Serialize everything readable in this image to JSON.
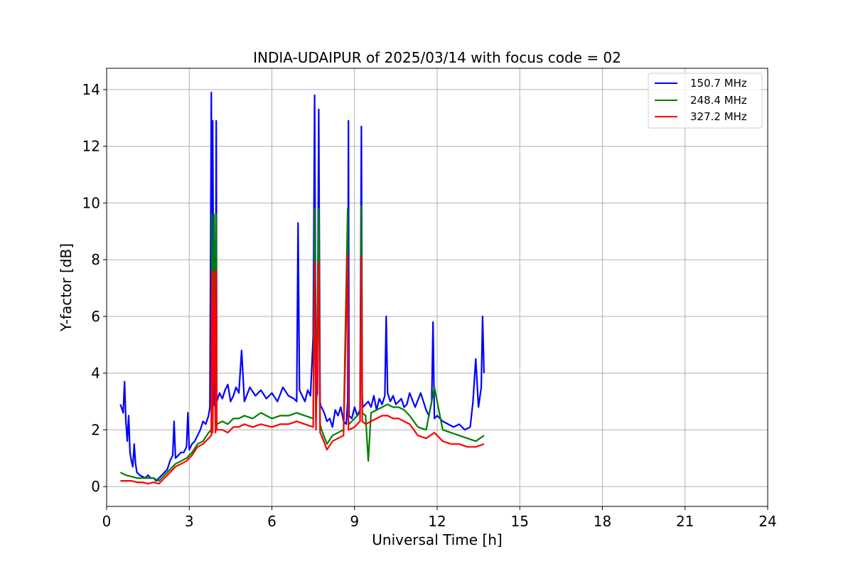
{
  "chart_data": {
    "type": "line",
    "title": "INDIA-UDAIPUR of 2025/03/14 with focus code = 02",
    "xlabel": "Universal Time [h]",
    "ylabel": "Y-factor [dB]",
    "xlim": [
      0,
      24
    ],
    "ylim": [
      -0.7,
      14.75
    ],
    "xticks": [
      0,
      3,
      6,
      9,
      12,
      15,
      18,
      21,
      24
    ],
    "yticks": [
      0,
      2,
      4,
      6,
      8,
      10,
      12,
      14
    ],
    "grid": true,
    "legend_position": "top-right",
    "series": [
      {
        "name": "150.7 MHz",
        "color": "#0000ff",
        "x": [
          0.5,
          0.6,
          0.65,
          0.7,
          0.75,
          0.8,
          0.85,
          0.9,
          0.95,
          1.0,
          1.05,
          1.1,
          1.15,
          1.2,
          1.3,
          1.4,
          1.5,
          1.6,
          1.7,
          1.8,
          1.9,
          2.0,
          2.2,
          2.3,
          2.4,
          2.45,
          2.5,
          2.6,
          2.7,
          2.8,
          2.9,
          2.95,
          3.0,
          3.1,
          3.2,
          3.3,
          3.4,
          3.5,
          3.6,
          3.7,
          3.75,
          3.8,
          3.82,
          3.85,
          3.9,
          3.95,
          3.98,
          4.0,
          4.1,
          4.2,
          4.3,
          4.4,
          4.5,
          4.6,
          4.7,
          4.8,
          4.9,
          5.0,
          5.2,
          5.4,
          5.6,
          5.8,
          6.0,
          6.2,
          6.4,
          6.6,
          6.8,
          6.9,
          6.95,
          7.0,
          7.1,
          7.2,
          7.3,
          7.4,
          7.5,
          7.55,
          7.6,
          7.65,
          7.7,
          7.75,
          7.78,
          7.8,
          7.9,
          8.0,
          8.1,
          8.2,
          8.3,
          8.4,
          8.5,
          8.6,
          8.7,
          8.75,
          8.78,
          8.8,
          8.9,
          9.0,
          9.1,
          9.2,
          9.25,
          9.28,
          9.3,
          9.4,
          9.5,
          9.6,
          9.7,
          9.8,
          9.9,
          10.0,
          10.1,
          10.15,
          10.2,
          10.3,
          10.4,
          10.5,
          10.6,
          10.7,
          10.8,
          10.9,
          11.0,
          11.2,
          11.4,
          11.6,
          11.7,
          11.8,
          11.85,
          11.9,
          12.0,
          12.2,
          12.4,
          12.6,
          12.8,
          13.0,
          13.2,
          13.3,
          13.4,
          13.5,
          13.6,
          13.65,
          13.7
        ],
        "y": [
          2.9,
          2.6,
          3.7,
          2.3,
          1.6,
          2.5,
          1.2,
          0.9,
          0.7,
          1.5,
          0.8,
          0.5,
          0.45,
          0.4,
          0.35,
          0.3,
          0.4,
          0.3,
          0.3,
          0.2,
          0.3,
          0.4,
          0.6,
          0.9,
          1.1,
          2.3,
          1.0,
          1.1,
          1.2,
          1.2,
          1.4,
          2.6,
          1.3,
          1.5,
          1.6,
          1.8,
          2.0,
          2.3,
          2.2,
          2.5,
          2.8,
          13.9,
          3.0,
          12.9,
          2.9,
          2.8,
          12.9,
          3.0,
          3.3,
          3.1,
          3.4,
          3.6,
          3.0,
          3.2,
          3.5,
          3.3,
          4.8,
          3.0,
          3.5,
          3.2,
          3.4,
          3.1,
          3.3,
          3.0,
          3.5,
          3.2,
          3.1,
          3.0,
          9.3,
          3.4,
          3.2,
          3.0,
          3.4,
          3.2,
          5.3,
          13.8,
          3.0,
          3.3,
          13.3,
          3.0,
          2.8,
          2.8,
          2.6,
          2.3,
          2.4,
          2.1,
          2.7,
          2.5,
          2.8,
          2.3,
          2.2,
          3.0,
          12.9,
          2.5,
          2.4,
          2.8,
          2.5,
          2.7,
          12.7,
          3.2,
          2.8,
          2.9,
          3.0,
          2.8,
          3.2,
          2.7,
          3.1,
          2.9,
          3.2,
          6.0,
          3.3,
          3.0,
          3.2,
          2.9,
          3.0,
          3.1,
          2.8,
          2.9,
          3.3,
          2.8,
          3.3,
          2.7,
          2.5,
          3.0,
          5.8,
          2.4,
          2.5,
          2.3,
          2.2,
          2.1,
          2.2,
          2.0,
          2.1,
          3.0,
          4.5,
          2.8,
          3.5,
          6.0,
          4.0
        ]
      },
      {
        "name": "248.4 MHz",
        "color": "#008000",
        "x": [
          0.5,
          0.7,
          0.9,
          1.1,
          1.3,
          1.5,
          1.7,
          1.9,
          2.1,
          2.3,
          2.5,
          2.7,
          2.9,
          3.1,
          3.3,
          3.5,
          3.7,
          3.8,
          3.82,
          3.85,
          3.9,
          3.95,
          3.98,
          4.0,
          4.2,
          4.4,
          4.6,
          4.8,
          5.0,
          5.3,
          5.6,
          6.0,
          6.3,
          6.6,
          6.9,
          7.2,
          7.5,
          7.55,
          7.6,
          7.7,
          7.75,
          7.8,
          8.0,
          8.2,
          8.4,
          8.6,
          8.75,
          8.78,
          8.8,
          9.0,
          9.2,
          9.25,
          9.28,
          9.4,
          9.5,
          9.6,
          9.8,
          10.0,
          10.2,
          10.4,
          10.6,
          10.8,
          11.0,
          11.3,
          11.6,
          11.9,
          12.2,
          12.5,
          12.8,
          13.1,
          13.4,
          13.7
        ],
        "y": [
          0.5,
          0.4,
          0.35,
          0.3,
          0.3,
          0.3,
          0.3,
          0.2,
          0.4,
          0.6,
          0.8,
          0.9,
          1.0,
          1.2,
          1.5,
          1.6,
          1.9,
          2.0,
          9.6,
          2.1,
          9.6,
          2.1,
          9.6,
          2.2,
          2.3,
          2.2,
          2.4,
          2.4,
          2.5,
          2.4,
          2.6,
          2.4,
          2.5,
          2.5,
          2.6,
          2.5,
          2.4,
          9.8,
          2.3,
          9.8,
          2.2,
          2.0,
          1.5,
          1.8,
          1.9,
          2.0,
          9.8,
          2.3,
          2.2,
          2.4,
          2.6,
          9.9,
          2.6,
          2.5,
          0.9,
          2.6,
          2.7,
          2.8,
          2.9,
          2.8,
          2.8,
          2.7,
          2.5,
          2.1,
          2.0,
          3.5,
          2.0,
          1.9,
          1.8,
          1.7,
          1.6,
          1.8
        ]
      },
      {
        "name": "327.2 MHz",
        "color": "#ff0000",
        "x": [
          0.5,
          0.7,
          0.9,
          1.1,
          1.3,
          1.5,
          1.7,
          1.9,
          2.1,
          2.3,
          2.5,
          2.7,
          2.9,
          3.1,
          3.3,
          3.5,
          3.7,
          3.8,
          3.82,
          3.85,
          3.9,
          3.95,
          3.98,
          4.0,
          4.2,
          4.4,
          4.6,
          4.8,
          5.0,
          5.3,
          5.6,
          6.0,
          6.3,
          6.6,
          6.9,
          7.2,
          7.5,
          7.55,
          7.6,
          7.7,
          7.75,
          7.8,
          8.0,
          8.2,
          8.4,
          8.6,
          8.75,
          8.78,
          8.8,
          9.0,
          9.2,
          9.25,
          9.28,
          9.4,
          9.6,
          9.8,
          10.0,
          10.2,
          10.4,
          10.6,
          10.8,
          11.0,
          11.3,
          11.6,
          11.9,
          12.2,
          12.5,
          12.8,
          13.1,
          13.4,
          13.7
        ],
        "y": [
          0.2,
          0.2,
          0.2,
          0.15,
          0.15,
          0.1,
          0.15,
          0.1,
          0.3,
          0.5,
          0.7,
          0.8,
          0.9,
          1.1,
          1.4,
          1.5,
          1.7,
          1.8,
          7.6,
          1.9,
          7.6,
          1.9,
          7.6,
          2.0,
          2.0,
          1.9,
          2.1,
          2.1,
          2.2,
          2.1,
          2.2,
          2.1,
          2.2,
          2.2,
          2.3,
          2.2,
          2.1,
          7.9,
          2.0,
          7.9,
          1.9,
          1.8,
          1.3,
          1.6,
          1.7,
          1.8,
          8.2,
          2.0,
          2.0,
          2.1,
          2.3,
          8.1,
          2.3,
          2.2,
          2.3,
          2.4,
          2.5,
          2.5,
          2.4,
          2.4,
          2.3,
          2.2,
          1.8,
          1.7,
          1.9,
          1.6,
          1.5,
          1.5,
          1.4,
          1.4,
          1.5
        ]
      }
    ]
  }
}
